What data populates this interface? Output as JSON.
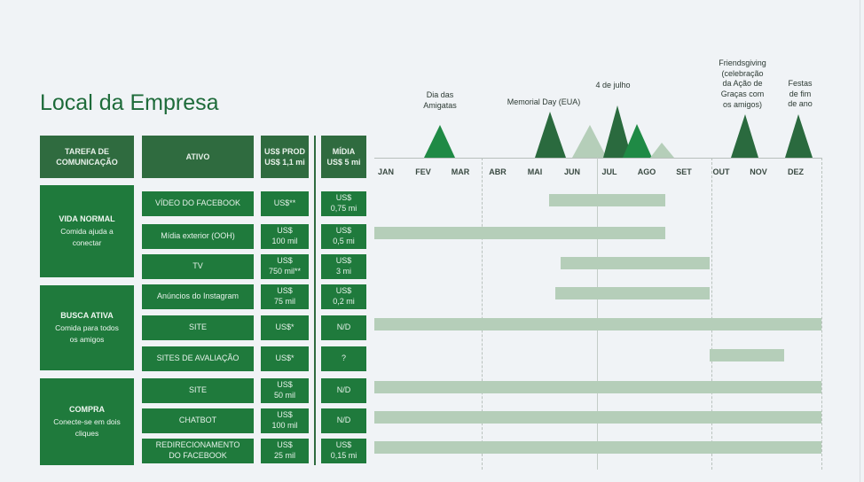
{
  "title": "Local da Empresa",
  "headers": {
    "task": "TAREFA DE\nCOMUNICAÇÃO",
    "asset": "ATIVO",
    "prod": "US$ PROD\nUS$ 1,1 mi",
    "media": "MÍDIA\nUS$ 5 mi"
  },
  "months": [
    "JAN",
    "FEV",
    "MAR",
    "ABR",
    "MAI",
    "JUN",
    "JUL",
    "AGO",
    "SET",
    "OUT",
    "NOV",
    "DEZ"
  ],
  "events": {
    "amigatas": "Dia das\nAmigatas",
    "memorial": "Memorial Day (EUA)",
    "july4": "4 de julho",
    "friendsgiving": "Friendsgiving\n(celebração\nda Ação de\nGraças com\nos amigos)",
    "festas": "Festas\nde fim\nde ano"
  },
  "tasks": [
    {
      "name": "VIDA NORMAL",
      "desc": "Comida ajuda a\nconectar"
    },
    {
      "name": "BUSCA ATIVA",
      "desc": "Comida para todos\nos amigos"
    },
    {
      "name": "COMPRA",
      "desc": "Conecte-se em dois\ncliques"
    }
  ],
  "rows": [
    {
      "asset": "VÍDEO DO FACEBOOK",
      "prod": "US$**",
      "media": "US$\n0,75 mi",
      "start": 4.7,
      "end": 7.8
    },
    {
      "asset": "Mídia exterior (OOH)",
      "prod": "US$\n100 mil",
      "media": "US$\n0,5 mi",
      "start": 0.0,
      "end": 7.8
    },
    {
      "asset": "TV",
      "prod": "US$\n750 mil**",
      "media": "US$\n3 mi",
      "start": 5.0,
      "end": 9.0
    },
    {
      "asset": "Anúncios do Instagram",
      "prod": "US$\n75 mil",
      "media": "US$\n0,2 mi",
      "start": 4.85,
      "end": 9.0
    },
    {
      "asset": "SITE",
      "prod": "US$*",
      "media": "N/D",
      "start": 0.0,
      "end": 12.0
    },
    {
      "asset": "SITES DE AVALIAÇÃO",
      "prod": "US$*",
      "media": "?",
      "start": 9.0,
      "end": 11.0
    },
    {
      "asset": "SITE",
      "prod": "US$\n50 mil",
      "media": "N/D",
      "start": 0.0,
      "end": 12.0
    },
    {
      "asset": "CHATBOT",
      "prod": "US$\n100 mil",
      "media": "N/D",
      "start": 0.0,
      "end": 12.0
    },
    {
      "asset": "REDIRECIONAMENTO\nDO FACEBOOK",
      "prod": "US$\n25 mil",
      "media": "US$\n0,15 mi",
      "start": 0.0,
      "end": 12.0
    }
  ],
  "colors": {
    "dark_green": "#2a6a3e",
    "bright_green": "#1f8a45",
    "light_green": "#b5ceb9",
    "bar": "#b5ceb9"
  }
}
